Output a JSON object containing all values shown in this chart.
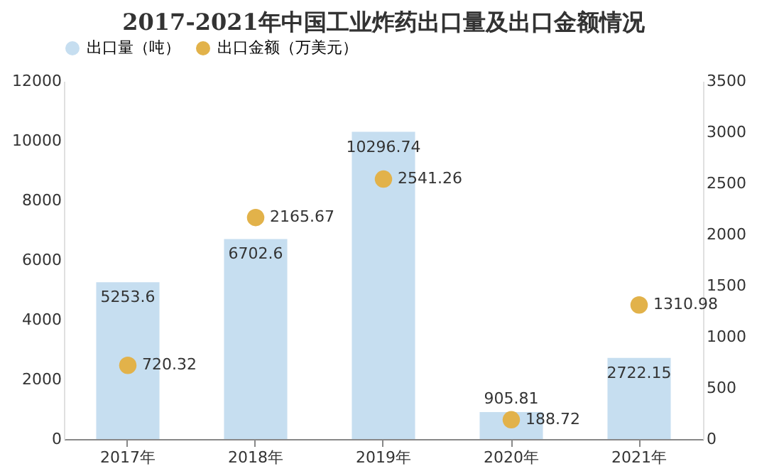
{
  "chart_data": {
    "type": "bar",
    "title": "2017-2021年中国工业炸药出口量及出口金额情况",
    "categories": [
      "2017年",
      "2018年",
      "2019年",
      "2020年",
      "2021年"
    ],
    "series": [
      {
        "name": "出口量（吨）",
        "color": "#c6def0",
        "values": [
          5253.6,
          6702.6,
          10296.74,
          905.81,
          2722.15
        ]
      },
      {
        "name": "出口金额（万美元）",
        "type": "scatter",
        "axis": "y2",
        "color": "#e2b24a",
        "values": [
          720.32,
          2165.67,
          2541.26,
          188.72,
          1310.98
        ]
      }
    ],
    "ylim": [
      0,
      12000
    ],
    "yticks": [
      0,
      2000,
      4000,
      6000,
      8000,
      10000,
      12000
    ],
    "y2lim": [
      0,
      3500
    ],
    "y2ticks": [
      0,
      500,
      1000,
      1500,
      2000,
      2500,
      3000,
      3500
    ],
    "data_labels": true,
    "legend": "top",
    "marker": "circle"
  }
}
